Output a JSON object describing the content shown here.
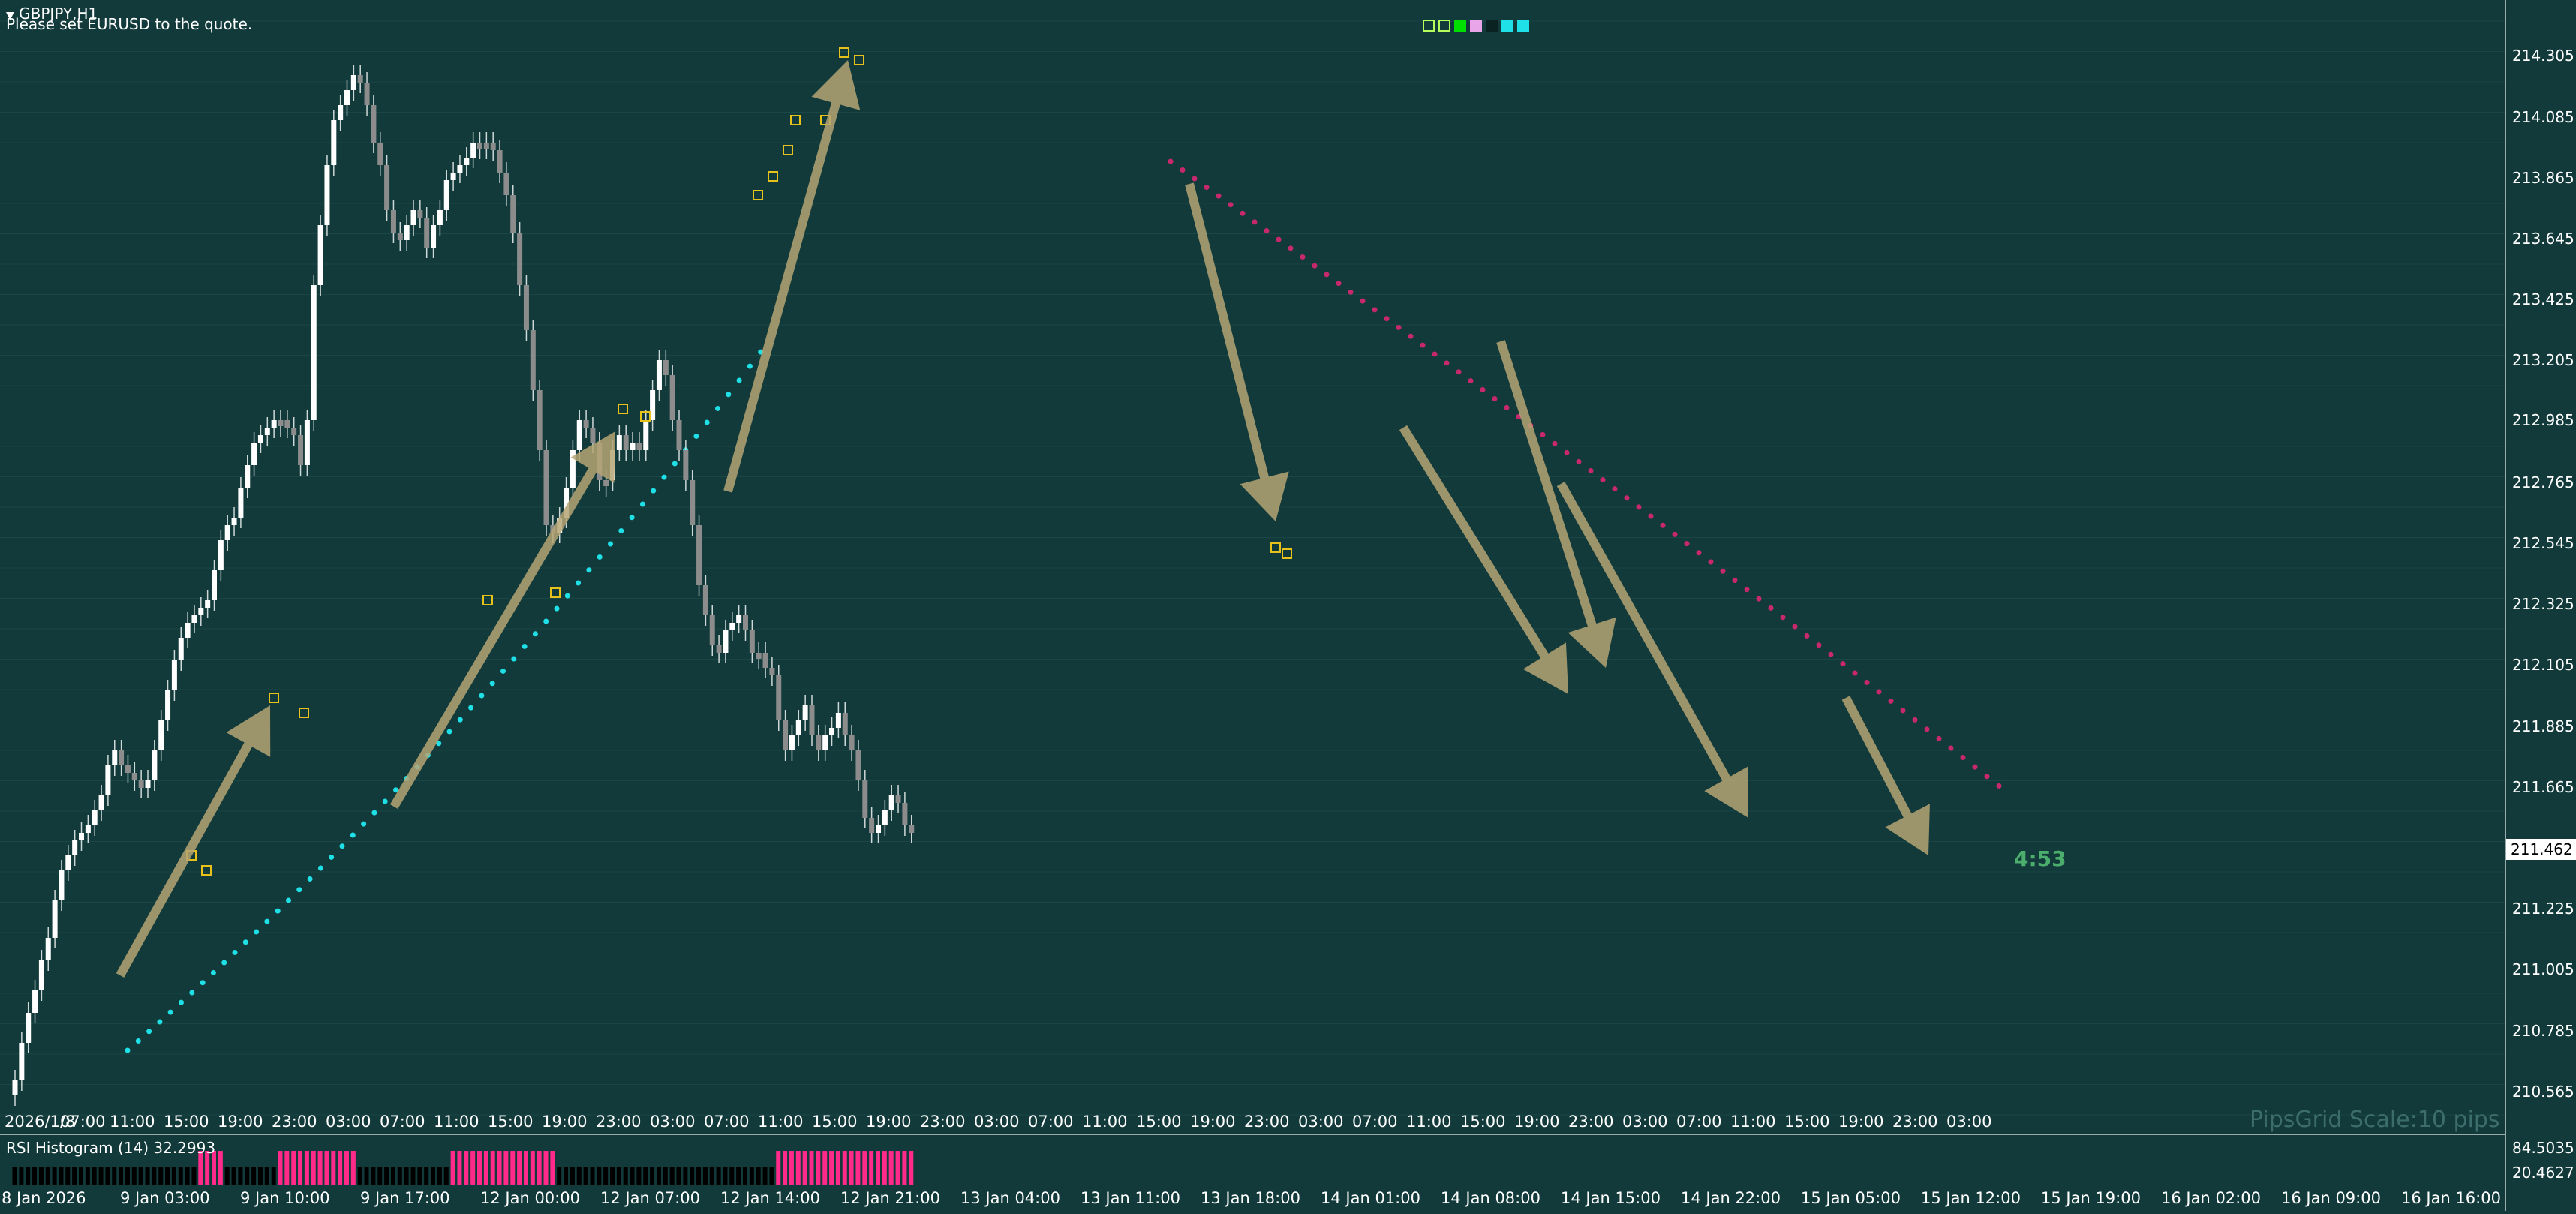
{
  "header": {
    "symbol": "GBPJPY,H1",
    "notice": "Please set EURUSD to the quote."
  },
  "price_axis": {
    "labels": [
      "214.305",
      "214.085",
      "213.865",
      "213.645",
      "213.425",
      "213.205",
      "212.985",
      "212.765",
      "212.545",
      "212.325",
      "212.105",
      "211.885",
      "211.665",
      "211.225",
      "211.005",
      "210.785",
      "210.565"
    ],
    "current_price": "211.462"
  },
  "time_axis": {
    "labels": [
      "2026/1/8",
      "07:00",
      "11:00",
      "15:00",
      "19:00",
      "23:00",
      "03:00",
      "07:00",
      "11:00",
      "15:00",
      "19:00",
      "23:00",
      "03:00",
      "07:00",
      "11:00",
      "15:00",
      "19:00",
      "23:00",
      "03:00",
      "07:00",
      "11:00",
      "15:00",
      "19:00",
      "23:00",
      "03:00",
      "07:00",
      "11:00",
      "15:00",
      "19:00",
      "23:00",
      "03:00",
      "07:00",
      "11:00",
      "15:00",
      "19:00",
      "23:00",
      "03:00"
    ]
  },
  "countdown": "4:53",
  "pipsgrid": "PipsGrid Scale:10 pips",
  "rsi": {
    "title": "RSI Histogram (14) 32.2993",
    "axis_top": "84.5035",
    "axis_bottom": "20.4627",
    "colors": {
      "overbought": "#ff2a8a",
      "oversold": "#27b7f5",
      "neutral": "#5a6a6a"
    }
  },
  "bottom_axis": {
    "labels": [
      "8 Jan 2026",
      "9 Jan 03:00",
      "9 Jan 10:00",
      "9 Jan 17:00",
      "12 Jan 00:00",
      "12 Jan 07:00",
      "12 Jan 14:00",
      "12 Jan 21:00",
      "13 Jan 04:00",
      "13 Jan 11:00",
      "13 Jan 18:00",
      "14 Jan 01:00",
      "14 Jan 08:00",
      "14 Jan 15:00",
      "14 Jan 22:00",
      "15 Jan 05:00",
      "15 Jan 12:00",
      "15 Jan 19:00",
      "16 Jan 02:00",
      "16 Jan 09:00",
      "16 Jan 16:00"
    ]
  },
  "toolbar_icons": [
    "square-outline-icon",
    "square-outline-icon",
    "square-filled-green-icon",
    "square-pink-icon",
    "square-dark-icon",
    "lines-icon",
    "cross-icon"
  ],
  "colors": {
    "background": "#123a3a",
    "bull_candle": "#ffffff",
    "bear_candle": "#8c8c8c",
    "up_trail_dots": "#1fe0e6",
    "down_trail_dots": "#c8286e",
    "arrow_fill": "#b5a574",
    "marker": "#e8c21a"
  }
}
